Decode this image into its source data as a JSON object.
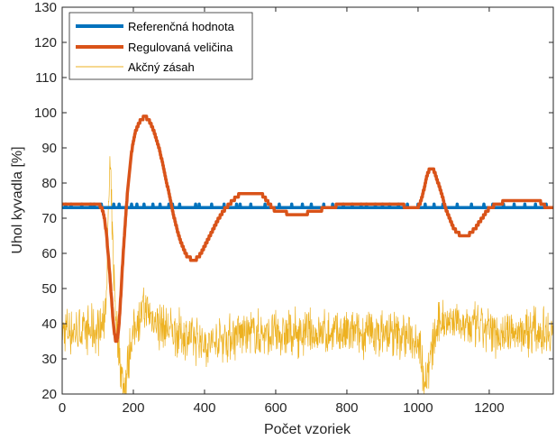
{
  "chart_data": {
    "type": "line",
    "xlabel": "Počet vzoriek",
    "ylabel": "Uhol kyvadla [%]",
    "xlim": [
      0,
      1380
    ],
    "ylim": [
      20,
      130
    ],
    "xticks": [
      0,
      200,
      400,
      600,
      800,
      1000,
      1200
    ],
    "yticks": [
      20,
      30,
      40,
      50,
      60,
      70,
      80,
      90,
      100,
      110,
      120,
      130
    ],
    "grid": false,
    "legend_position": "top-left",
    "series": [
      {
        "name": "Referenčná hodnota",
        "color": "#0072BD",
        "line_width": "thick",
        "x": [
          0,
          1380
        ],
        "values": [
          73,
          73
        ],
        "spike_value": 74,
        "spike_x": [
          10,
          25,
          55,
          80,
          90,
          110,
          145,
          160,
          195,
          210,
          230,
          255,
          275,
          300,
          310,
          330,
          375,
          385,
          420,
          455,
          490,
          500,
          530,
          570,
          610,
          645,
          675,
          700,
          735,
          760,
          790,
          815,
          840,
          855,
          880,
          900,
          920,
          945,
          970,
          1000,
          1020,
          1045,
          1070,
          1110,
          1150,
          1185,
          1210,
          1240,
          1270,
          1300,
          1330,
          1360
        ]
      },
      {
        "name": "Regulovaná veličina",
        "color": "#D95319",
        "line_width": "thick",
        "x": [
          0,
          60,
          100,
          112,
          120,
          128,
          138,
          148,
          158,
          170,
          185,
          200,
          220,
          235,
          250,
          270,
          290,
          310,
          330,
          350,
          370,
          385,
          400,
          420,
          440,
          460,
          480,
          500,
          520,
          540,
          560,
          575,
          590,
          600,
          620,
          640,
          660,
          680,
          700,
          720,
          740,
          760,
          780,
          800,
          850,
          900,
          940,
          980,
          1000,
          1010,
          1020,
          1030,
          1040,
          1060,
          1080,
          1100,
          1120,
          1140,
          1160,
          1180,
          1200,
          1250,
          1300,
          1340,
          1360,
          1380
        ],
        "values": [
          74,
          74,
          74,
          73,
          70,
          62,
          48,
          34,
          35,
          58,
          80,
          93,
          98,
          99,
          97,
          91,
          82,
          72,
          64,
          59,
          58,
          59,
          62,
          66,
          70,
          73,
          75,
          77,
          77,
          77,
          77,
          75,
          73,
          72,
          72,
          71,
          71,
          71,
          72,
          72,
          73,
          73,
          74,
          74,
          74,
          74,
          74,
          73,
          73,
          75,
          80,
          84,
          85,
          79,
          72,
          67,
          65,
          65,
          67,
          70,
          73,
          75,
          75,
          75,
          73,
          73
        ]
      },
      {
        "name": "Akčný zásah",
        "color": "#EDB120",
        "line_width": "thin",
        "x": [
          0,
          50,
          100,
          118,
          126,
          134,
          140,
          148,
          156,
          164,
          172,
          180,
          190,
          210,
          230,
          250,
          270,
          300,
          330,
          360,
          390,
          420,
          450,
          500,
          600,
          700,
          800,
          900,
          1000,
          1010,
          1020,
          1030,
          1045,
          1060,
          1080,
          1100,
          1150,
          1200,
          1250,
          1300,
          1380
        ],
        "values": [
          38,
          38,
          38,
          40,
          55,
          85,
          68,
          47,
          36,
          28,
          22,
          25,
          33,
          41,
          44,
          42,
          40,
          38,
          37,
          36,
          35,
          34,
          36,
          37,
          37,
          37,
          37,
          37,
          36,
          30,
          24,
          28,
          35,
          40,
          42,
          41,
          39,
          38,
          37,
          38,
          38
        ],
        "noise_amplitude": 8
      }
    ]
  }
}
